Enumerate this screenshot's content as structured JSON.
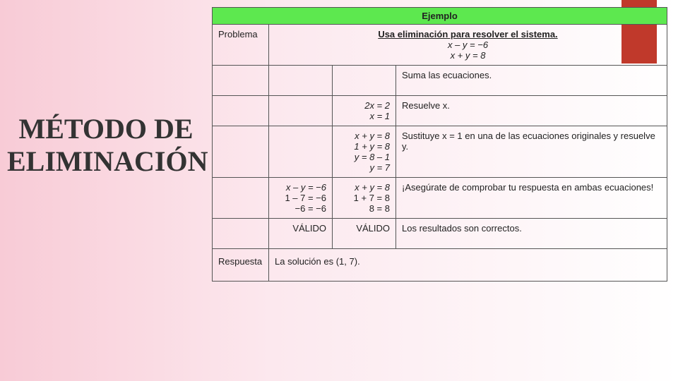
{
  "sidebar": {
    "title": "MÉTODO DE ELIMINACIÓN"
  },
  "table": {
    "header": "Ejemplo",
    "problem_label": "Problema",
    "problem_title": "Usa eliminación para resolver el sistema.",
    "problem_eq1": "x – y = −6",
    "problem_eq2": "x + y = 8",
    "step1_text": "Suma las ecuaciones.",
    "step2_eq_a": "2x = 2",
    "step2_eq_b": "x = 1",
    "step2_text": "Resuelve x.",
    "step3_eq_a": "x + y = 8",
    "step3_eq_b": "1 + y = 8",
    "step3_eq_c": "y = 8 – 1",
    "step3_eq_d": "y = 7",
    "step3_text": "Sustituye x = 1 en una de las ecuaciones originales y resuelve y.",
    "step4_left_a": "x – y = −6",
    "step4_left_b": "1 – 7 = −6",
    "step4_left_c": "−6 = −6",
    "step4_right_a": "x + y = 8",
    "step4_right_b": "1 + 7 = 8",
    "step4_right_c": "8 = 8",
    "step4_text": "¡Asegúrate de comprobar tu respuesta en ambas ecuaciones!",
    "valid_left": "VÁLIDO",
    "valid_right": "VÁLIDO",
    "valid_text": "Los resultados son correctos.",
    "answer_label": "Respuesta",
    "answer_text": "La solución es (1, 7)."
  },
  "colors": {
    "header_bg": "#5de84f",
    "red_tab": "#c0392b",
    "bg_left": "#f8cbd6",
    "bg_right": "#ffffff"
  }
}
